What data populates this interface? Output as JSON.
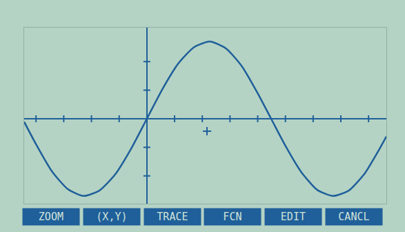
{
  "chart_data": {
    "type": "line",
    "x": [
      -3.1,
      -2.8,
      -2.4,
      -2.0,
      -1.6,
      -1.2,
      -0.8,
      -0.4,
      0,
      0.4,
      0.8,
      1.2,
      1.6,
      2.0,
      2.4,
      2.8,
      3.14,
      3.5,
      3.9,
      4.3,
      4.7,
      5.1,
      5.5,
      5.9,
      6.05
    ],
    "values": [
      -0.04,
      -0.33,
      -0.68,
      -0.91,
      -1.0,
      -0.93,
      -0.72,
      -0.39,
      0,
      0.39,
      0.72,
      0.93,
      1.0,
      0.91,
      0.68,
      0.33,
      0,
      -0.35,
      -0.69,
      -0.92,
      -1.0,
      -0.93,
      -0.71,
      -0.37,
      -0.23
    ],
    "color": "#1f5f9a",
    "xlim": [
      -3.1,
      6.05
    ],
    "ylim": [
      -1.1,
      1.18
    ],
    "xticks": [
      -2.8,
      -2.1,
      -1.4,
      -0.7,
      0,
      0.7,
      1.4,
      2.1,
      2.8,
      3.5,
      4.2,
      4.9,
      5.6
    ],
    "yticks": [
      -0.74,
      -0.37,
      0,
      0.37,
      0.74
    ],
    "tick_labels": false,
    "grid": false,
    "annotations": [
      "ZOOM",
      "(X,Y)",
      "TRACE",
      "FCN",
      "EDIT",
      "CANCL"
    ]
  }
}
